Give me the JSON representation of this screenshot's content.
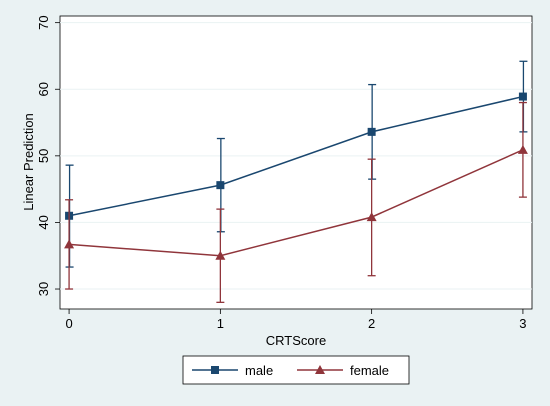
{
  "chart_data": {
    "type": "line",
    "xlabel": "CRTScore",
    "ylabel": "Linear Prediction",
    "x": [
      0,
      1,
      2,
      3
    ],
    "x_ticks": [
      "0",
      "1",
      "2",
      "3"
    ],
    "y_ticks": [
      30,
      40,
      50,
      60,
      70
    ],
    "ylim": [
      27,
      71
    ],
    "xlim": [
      -0.06,
      3.06
    ],
    "grid": "horizontal",
    "legend_position": "bottom",
    "series": [
      {
        "name": "male",
        "color": "#1a476f",
        "marker": "square",
        "values": [
          41.0,
          45.6,
          53.6,
          58.9
        ],
        "ci_low": [
          33.3,
          38.6,
          46.5,
          53.6
        ],
        "ci_high": [
          48.6,
          52.6,
          60.7,
          64.2
        ]
      },
      {
        "name": "female",
        "color": "#90353b",
        "marker": "triangle",
        "values": [
          36.7,
          35.0,
          40.8,
          50.9
        ],
        "ci_low": [
          30.0,
          28.0,
          32.0,
          43.8
        ],
        "ci_high": [
          43.4,
          42.0,
          49.5,
          58.0
        ]
      }
    ]
  }
}
